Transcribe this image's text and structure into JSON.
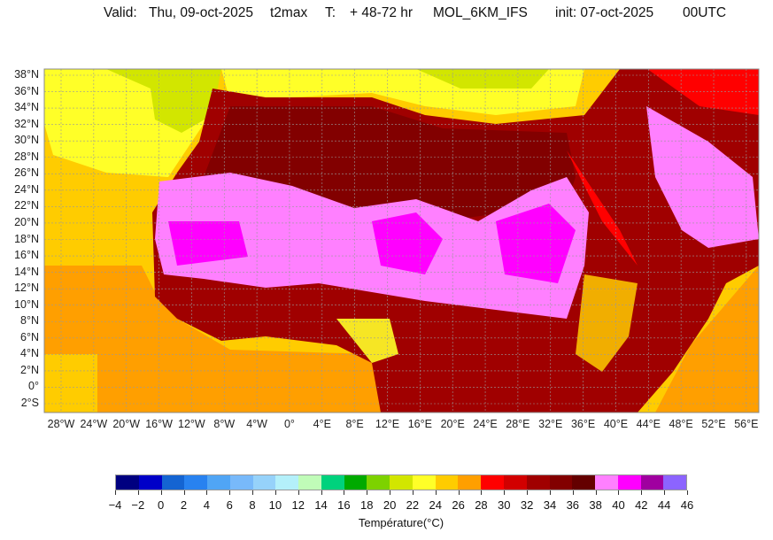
{
  "header": {
    "valid_label": "Valid:",
    "valid_date": "Thu, 09-oct-2025",
    "variable": "t2max",
    "t_label": "T:",
    "lead_time": "+ 48-72 hr",
    "model": "MOL_6KM_IFS",
    "init": "init: 07-oct-2025",
    "run": "00UTC"
  },
  "map": {
    "lat_labels": [
      "38°N",
      "36°N",
      "34°N",
      "32°N",
      "30°N",
      "28°N",
      "26°N",
      "24°N",
      "22°N",
      "20°N",
      "18°N",
      "16°N",
      "14°N",
      "12°N",
      "10°N",
      "8°N",
      "6°N",
      "4°N",
      "2°N",
      "0°",
      "2°S"
    ],
    "lon_labels": [
      "28°W",
      "24°W",
      "20°W",
      "16°W",
      "12°W",
      "8°W",
      "4°W",
      "0°",
      "4°E",
      "8°E",
      "12°E",
      "16°E",
      "20°E",
      "24°E",
      "28°E",
      "32°E",
      "36°E",
      "40°E",
      "44°E",
      "48°E",
      "52°E",
      "56°E"
    ]
  },
  "colorbar": {
    "ticks": [
      "−4",
      "−2",
      "0",
      "2",
      "4",
      "6",
      "8",
      "10",
      "12",
      "14",
      "16",
      "18",
      "20",
      "22",
      "24",
      "26",
      "28",
      "30",
      "32",
      "34",
      "36",
      "38",
      "40",
      "42",
      "44",
      "46"
    ],
    "colors": [
      "#000080",
      "#0000c8",
      "#1464d2",
      "#2882f0",
      "#50a5f5",
      "#78b9fa",
      "#96d2fa",
      "#b4f0fa",
      "#c0fcb8",
      "#00d27d",
      "#00aa00",
      "#7dd200",
      "#d2e600",
      "#ffff28",
      "#ffcc00",
      "#ff9f00",
      "#ff0000",
      "#d20000",
      "#a00000",
      "#820000",
      "#640000",
      "#ff80ff",
      "#ff00ff",
      "#a000a0",
      "#8c64ff"
    ],
    "label": "Température(°C)"
  }
}
